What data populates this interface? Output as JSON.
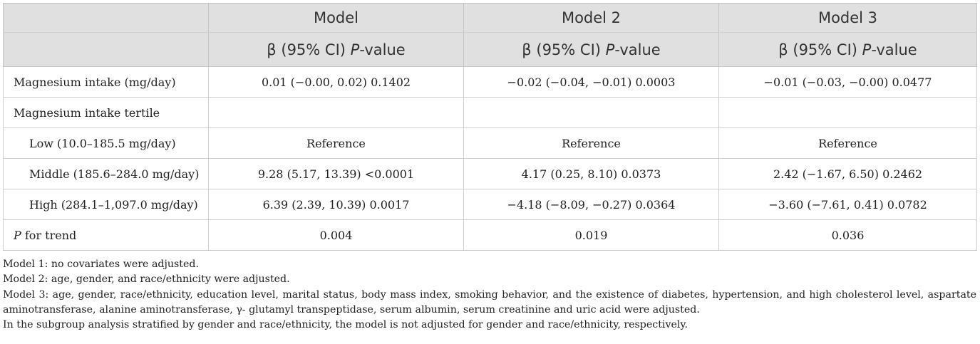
{
  "header": {
    "models": [
      "Model",
      "Model 2",
      "Model 3"
    ],
    "stat_prefix": "β (95% CI) ",
    "stat_p": "P",
    "stat_suffix": "-value"
  },
  "rows": [
    {
      "label": "Magnesium intake (mg/day)",
      "indent": false,
      "values": [
        "0.01 (−0.00, 0.02) 0.1402",
        "−0.02 (−0.04, −0.01) 0.0003",
        "−0.01 (−0.03, −0.00) 0.0477"
      ]
    },
    {
      "label": "Magnesium intake tertile",
      "indent": false,
      "values": [
        "",
        "",
        ""
      ]
    },
    {
      "label": "Low (10.0–185.5 mg/day)",
      "indent": true,
      "values": [
        "Reference",
        "Reference",
        "Reference"
      ]
    },
    {
      "label": "Middle (185.6–284.0 mg/day)",
      "indent": true,
      "values": [
        "9.28 (5.17, 13.39) <0.0001",
        "4.17 (0.25, 8.10) 0.0373",
        "2.42 (−1.67, 6.50) 0.2462"
      ]
    },
    {
      "label": "High (284.1–1,097.0 mg/day)",
      "indent": true,
      "values": [
        "6.39 (2.39, 10.39) 0.0017",
        "−4.18 (−8.09, −0.27) 0.0364",
        "−3.60 (−7.61, 0.41) 0.0782"
      ]
    },
    {
      "label_italic": "P",
      "label_rest": " for trend",
      "indent": false,
      "values": [
        "0.004",
        "0.019",
        "0.036"
      ]
    }
  ],
  "notes": [
    "Model 1: no covariates were adjusted.",
    "Model 2: age, gender, and race/ethnicity were adjusted.",
    "Model 3: age, gender, race/ethnicity, education level, marital status, body mass index, smoking behavior, and the existence of diabetes, hypertension, and high cholesterol level, aspartate aminotransferase, alanine aminotransferase, γ- glutamyl transpeptidase, serum albumin, serum creatinine and uric acid were adjusted.",
    "In the subgroup analysis stratified by gender and race/ethnicity, the model is not adjusted for gender and race/ethnicity, respectively."
  ]
}
